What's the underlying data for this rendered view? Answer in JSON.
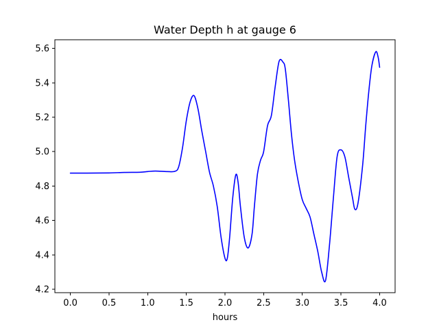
{
  "chart_data": {
    "type": "line",
    "title": "Water Depth h at gauge 6",
    "xlabel": "hours",
    "ylabel": "",
    "xlim": [
      -0.2,
      4.2
    ],
    "ylim": [
      4.18,
      5.65
    ],
    "xticks": [
      0.0,
      0.5,
      1.0,
      1.5,
      2.0,
      2.5,
      3.0,
      3.5,
      4.0
    ],
    "xtick_labels": [
      "0.0",
      "0.5",
      "1.0",
      "1.5",
      "2.0",
      "2.5",
      "3.0",
      "3.5",
      "4.0"
    ],
    "yticks": [
      4.2,
      4.4,
      4.6,
      4.8,
      5.0,
      5.2,
      5.4,
      5.6
    ],
    "ytick_labels": [
      "4.2",
      "4.4",
      "4.6",
      "4.8",
      "5.0",
      "5.2",
      "5.4",
      "5.6"
    ],
    "grid": false,
    "legend": "none",
    "series": [
      {
        "color": "#0000ff",
        "x": [
          0.0,
          0.2,
          0.5,
          0.7,
          0.9,
          1.0,
          1.1,
          1.25,
          1.35,
          1.4,
          1.45,
          1.5,
          1.55,
          1.6,
          1.65,
          1.7,
          1.75,
          1.8,
          1.85,
          1.9,
          1.95,
          2.0,
          2.03,
          2.06,
          2.1,
          2.14,
          2.17,
          2.2,
          2.25,
          2.3,
          2.35,
          2.38,
          2.42,
          2.46,
          2.5,
          2.55,
          2.6,
          2.65,
          2.7,
          2.75,
          2.78,
          2.82,
          2.86,
          2.9,
          2.95,
          3.0,
          3.05,
          3.1,
          3.15,
          3.2,
          3.25,
          3.3,
          3.35,
          3.4,
          3.45,
          3.5,
          3.55,
          3.6,
          3.65,
          3.68,
          3.72,
          3.78,
          3.82,
          3.86,
          3.9,
          3.95,
          3.98,
          4.0
        ],
        "y": [
          4.875,
          4.875,
          4.876,
          4.879,
          4.88,
          4.884,
          4.887,
          4.884,
          4.885,
          4.91,
          5.02,
          5.18,
          5.29,
          5.325,
          5.25,
          5.12,
          5.0,
          4.88,
          4.8,
          4.68,
          4.5,
          4.38,
          4.38,
          4.5,
          4.73,
          4.865,
          4.82,
          4.68,
          4.5,
          4.44,
          4.52,
          4.68,
          4.87,
          4.95,
          5.0,
          5.15,
          5.21,
          5.38,
          5.525,
          5.52,
          5.48,
          5.3,
          5.1,
          4.95,
          4.82,
          4.72,
          4.67,
          4.62,
          4.52,
          4.42,
          4.3,
          4.25,
          4.45,
          4.72,
          4.97,
          5.01,
          4.97,
          4.85,
          4.73,
          4.665,
          4.7,
          4.92,
          5.15,
          5.35,
          5.5,
          5.58,
          5.55,
          5.49
        ]
      }
    ]
  }
}
